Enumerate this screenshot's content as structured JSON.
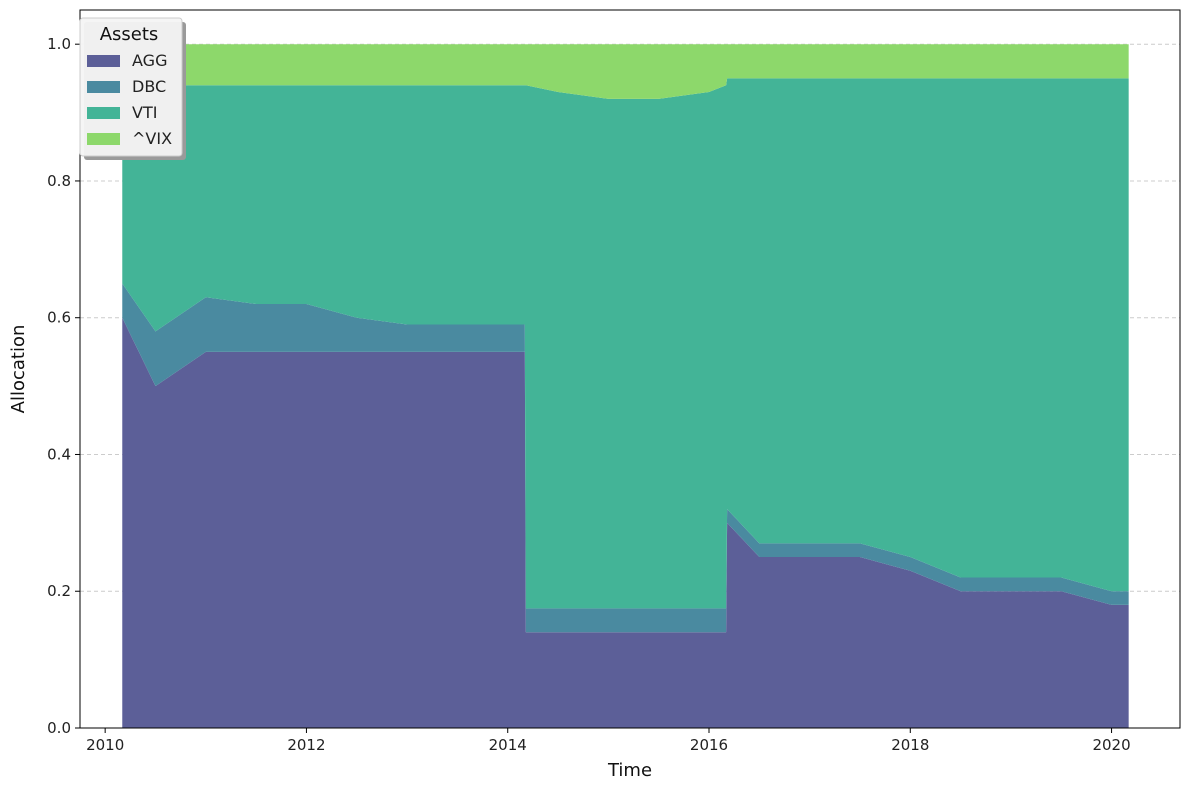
{
  "chart_data": {
    "type": "area",
    "stacked": true,
    "title": "",
    "xlabel": "Time",
    "ylabel": "Allocation",
    "xlim": [
      2009.75,
      2020.68
    ],
    "ylim": [
      0.0,
      1.05
    ],
    "xticks": [
      2010,
      2012,
      2014,
      2016,
      2018,
      2020
    ],
    "xtick_labels": [
      "2010",
      "2012",
      "2014",
      "2016",
      "2018",
      "2020"
    ],
    "yticks": [
      0.0,
      0.2,
      0.4,
      0.6,
      0.8,
      1.0
    ],
    "ytick_labels": [
      "0.0",
      "0.2",
      "0.4",
      "0.6",
      "0.8",
      "1.0"
    ],
    "grid": "horizontal-dashed",
    "legend": {
      "title": "Assets",
      "position": "top-left"
    },
    "x": [
      2010.17,
      2010.5,
      2011.0,
      2011.5,
      2012.0,
      2012.5,
      2013.0,
      2013.5,
      2014.0,
      2014.17,
      2014.18,
      2014.5,
      2015.0,
      2015.5,
      2016.0,
      2016.17,
      2016.18,
      2016.5,
      2017.0,
      2017.5,
      2018.0,
      2018.5,
      2019.0,
      2019.5,
      2020.0,
      2020.17
    ],
    "series": [
      {
        "name": "AGG",
        "color": "#5c5f98",
        "values": [
          0.6,
          0.5,
          0.55,
          0.55,
          0.55,
          0.55,
          0.55,
          0.55,
          0.55,
          0.55,
          0.14,
          0.14,
          0.14,
          0.14,
          0.14,
          0.14,
          0.3,
          0.25,
          0.25,
          0.25,
          0.23,
          0.2,
          0.2,
          0.2,
          0.18,
          0.18
        ]
      },
      {
        "name": "DBC",
        "color": "#4a8aa0",
        "values": [
          0.05,
          0.08,
          0.08,
          0.07,
          0.07,
          0.05,
          0.04,
          0.04,
          0.04,
          0.04,
          0.035,
          0.035,
          0.035,
          0.035,
          0.035,
          0.035,
          0.02,
          0.02,
          0.02,
          0.02,
          0.02,
          0.02,
          0.02,
          0.02,
          0.02,
          0.02
        ]
      },
      {
        "name": "VTI",
        "color": "#43b497",
        "values": [
          0.28,
          0.36,
          0.31,
          0.32,
          0.32,
          0.34,
          0.35,
          0.35,
          0.35,
          0.35,
          0.765,
          0.755,
          0.745,
          0.745,
          0.755,
          0.765,
          0.63,
          0.68,
          0.68,
          0.68,
          0.7,
          0.73,
          0.73,
          0.73,
          0.75,
          0.75
        ]
      },
      {
        "name": "^VIX",
        "color": "#8dd86b",
        "values": [
          0.07,
          0.06,
          0.06,
          0.06,
          0.06,
          0.06,
          0.06,
          0.06,
          0.06,
          0.06,
          0.06,
          0.07,
          0.08,
          0.08,
          0.07,
          0.06,
          0.05,
          0.05,
          0.05,
          0.05,
          0.05,
          0.05,
          0.05,
          0.05,
          0.05,
          0.05
        ]
      }
    ]
  }
}
